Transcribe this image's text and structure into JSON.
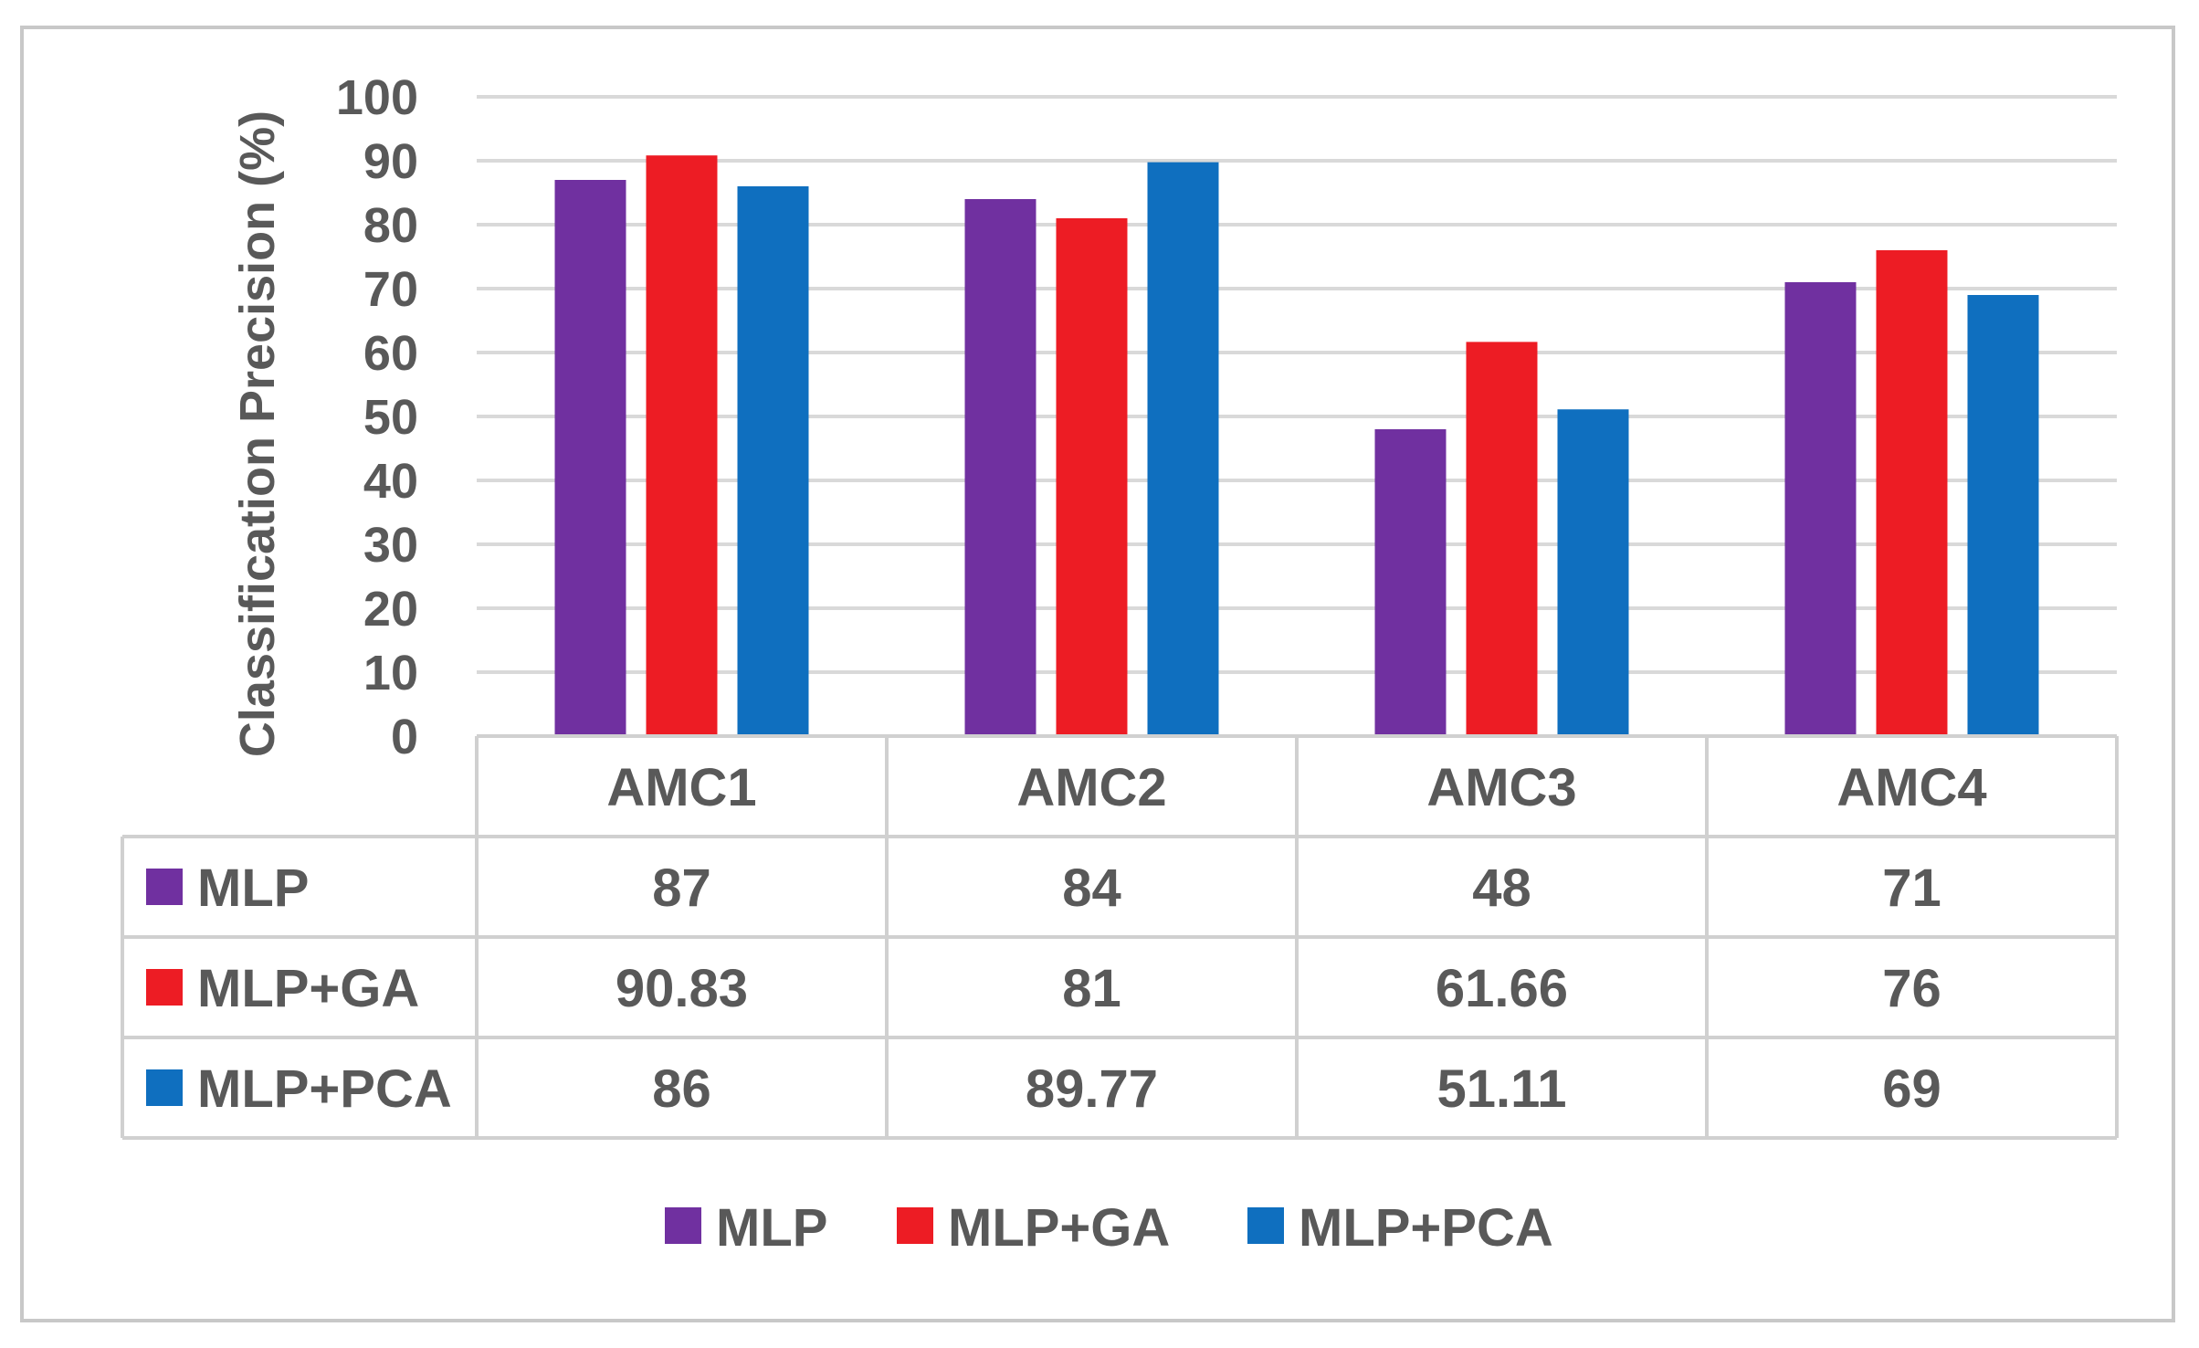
{
  "chart_data": {
    "type": "bar",
    "title": "",
    "xlabel": "",
    "ylabel": "Classification Precision (%)",
    "ylim": [
      0,
      100
    ],
    "yticks": [
      0,
      10,
      20,
      30,
      40,
      50,
      60,
      70,
      80,
      90,
      100
    ],
    "grid": true,
    "legend_position": "bottom",
    "data_table": true,
    "categories": [
      "AMC1",
      "AMC2",
      "AMC3",
      "AMC4"
    ],
    "series": [
      {
        "name": "MLP",
        "color": "#7030a0",
        "values": [
          87,
          84,
          48,
          71
        ],
        "labels": [
          "87",
          "84",
          "48",
          "71"
        ]
      },
      {
        "name": "MLP+GA",
        "color": "#ed1c24",
        "values": [
          90.83,
          81,
          61.66,
          76
        ],
        "labels": [
          "90.83",
          "81",
          "61.66",
          "76"
        ]
      },
      {
        "name": "MLP+PCA",
        "color": "#0f6fbf",
        "values": [
          86,
          89.77,
          51.11,
          69
        ],
        "labels": [
          "86",
          "89.77",
          "51.11",
          "69"
        ]
      }
    ]
  }
}
